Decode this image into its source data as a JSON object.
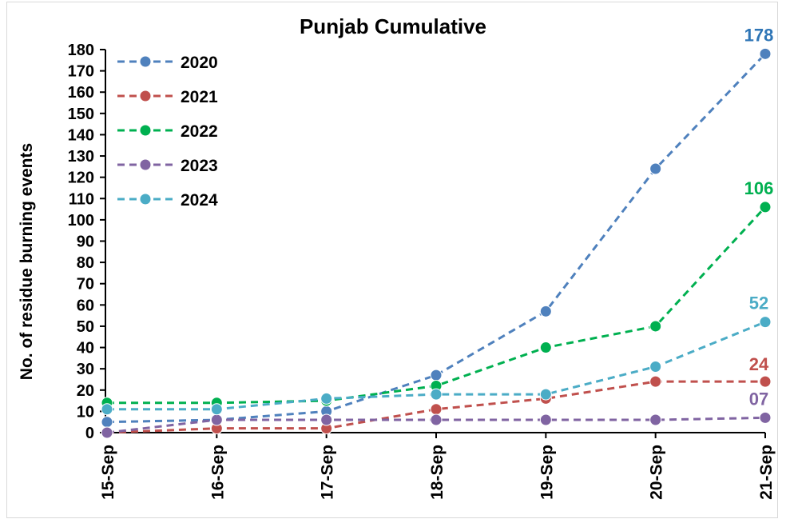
{
  "chart_data": {
    "type": "line",
    "title": "Punjab Cumulative",
    "xlabel": "",
    "ylabel": "No. of residue burning events",
    "categories": [
      "15-Sep",
      "16-Sep",
      "17-Sep",
      "18-Sep",
      "19-Sep",
      "20-Sep",
      "21-Sep"
    ],
    "ylim": [
      0,
      180
    ],
    "yticks": [
      "0",
      "10",
      "20",
      "30",
      "40",
      "50",
      "60",
      "70",
      "80",
      "90",
      "100",
      "110",
      "120",
      "130",
      "140",
      "150",
      "160",
      "170",
      "180"
    ],
    "grid": false,
    "legend_position": "top-left",
    "line_style": "dashed",
    "series": [
      {
        "name": "2020",
        "color": "#4F81BD",
        "label_color": "#2E75B6",
        "values": [
          5,
          6,
          10,
          27,
          57,
          124,
          178
        ],
        "end_label": "178"
      },
      {
        "name": "2021",
        "color": "#C0504D",
        "label_color": "#C0504D",
        "values": [
          0,
          2,
          2,
          11,
          16,
          24,
          24
        ],
        "end_label": "24"
      },
      {
        "name": "2022",
        "color": "#00B050",
        "label_color": "#00B050",
        "values": [
          14,
          14,
          15,
          22,
          40,
          50,
          106
        ],
        "end_label": "106"
      },
      {
        "name": "2023",
        "color": "#8064A2",
        "label_color": "#8064A2",
        "values": [
          0,
          6,
          6,
          6,
          6,
          6,
          7
        ],
        "end_label": "07"
      },
      {
        "name": "2024",
        "color": "#4BACC6",
        "label_color": "#4BACC6",
        "values": [
          11,
          11,
          16,
          18,
          18,
          31,
          52
        ],
        "end_label": "52"
      }
    ]
  }
}
